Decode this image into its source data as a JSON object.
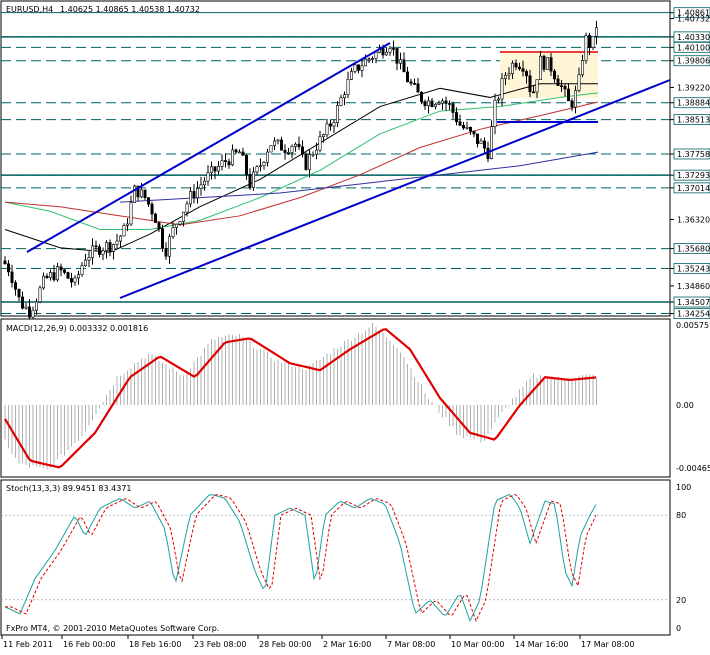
{
  "header": {
    "symbol": "EURUSD,H4",
    "ohlc": "1.40625 1.40865 1.40538 1.40732"
  },
  "price_scale": {
    "min": 1.342,
    "max": 1.4092,
    "levels": [
      {
        "label": "1.40861",
        "value": 1.40861,
        "kind": "current"
      },
      {
        "label": "1.40732",
        "value": 1.40732,
        "kind": "tick"
      },
      {
        "label": "1.40330",
        "value": 1.4033,
        "kind": "line"
      },
      {
        "label": "1.40100",
        "value": 1.401,
        "kind": "line"
      },
      {
        "label": "1.39806",
        "value": 1.39806,
        "kind": "line"
      },
      {
        "label": "1.39220",
        "value": 1.3922,
        "kind": "tick"
      },
      {
        "label": "1.38884",
        "value": 1.38884,
        "kind": "line"
      },
      {
        "label": "1.38513",
        "value": 1.38513,
        "kind": "line"
      },
      {
        "label": "1.37758",
        "value": 1.37758,
        "kind": "line"
      },
      {
        "label": "1.37293",
        "value": 1.37293,
        "kind": "line"
      },
      {
        "label": "1.37014",
        "value": 1.37014,
        "kind": "line"
      },
      {
        "label": "1.36320",
        "value": 1.3632,
        "kind": "tick"
      },
      {
        "label": "1.35680",
        "value": 1.3568,
        "kind": "line"
      },
      {
        "label": "1.35243",
        "value": 1.35243,
        "kind": "line"
      },
      {
        "label": "1.34860",
        "value": 1.3486,
        "kind": "tick"
      },
      {
        "label": "1.34507",
        "value": 1.34507,
        "kind": "line"
      },
      {
        "label": "1.34254",
        "value": 1.34254,
        "kind": "line"
      }
    ]
  },
  "macd": {
    "title": "MACD(12,26,9) 0.003332 0.001816",
    "scale": [
      "0.00575",
      "0.00",
      "-0.00465"
    ]
  },
  "stoch": {
    "title": "Stoch(13,3,3) 89.9451 83.4371",
    "scale": [
      "100",
      "80",
      "20",
      "0"
    ]
  },
  "copyright": "FxPro MT4, © 2001-2010 MetaQuotes Software Corp.",
  "time_axis": [
    "11 Feb 2011",
    "16 Feb 00:00",
    "18 Feb 16:00",
    "23 Feb 08:00",
    "28 Feb 00:00",
    "2 Mar 16:00",
    "7 Mar 08:00",
    "10 Mar 00:00",
    "14 Mar 16:00",
    "17 Mar 08:00"
  ],
  "colors": {
    "trendline": "#0000cc",
    "macd_signal": "#e00000",
    "macd_hist": "#b0b0b0",
    "stoch_main": "#20a0a0",
    "stoch_signal": "#e00000",
    "level_line": "#006060",
    "ma_fast": "#000000",
    "ma_green": "#30c070",
    "ma_red": "#c03030",
    "ma_blue": "#3030a0"
  }
}
